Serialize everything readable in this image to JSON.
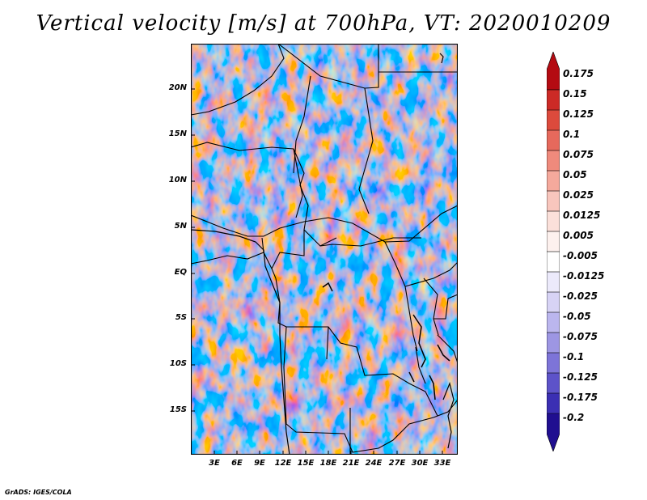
{
  "title": "Vertical velocity [m/s] at 700hPa, VT: 2020010209",
  "footer": "GrADS: IGES/COLA",
  "map": {
    "lat_labels": [
      "20N",
      "15N",
      "10N",
      "5N",
      "EQ",
      "5S",
      "10S",
      "15S"
    ],
    "lon_labels": [
      "3E",
      "6E",
      "9E",
      "12E",
      "15E",
      "18E",
      "21E",
      "24E",
      "27E",
      "30E",
      "33E"
    ]
  },
  "colorbar": {
    "labels": [
      "0.175",
      "0.15",
      "0.125",
      "0.1",
      "0.075",
      "0.05",
      "0.025",
      "0.0125",
      "0.005",
      "-0.005",
      "-0.0125",
      "-0.025",
      "-0.05",
      "-0.075",
      "-0.1",
      "-0.125",
      "-0.175",
      "-0.2"
    ],
    "colors": [
      "#b40b12",
      "#cc2a26",
      "#dc4a3c",
      "#e6695c",
      "#ef8a7c",
      "#f5a99c",
      "#f8c6bd",
      "#fbe0da",
      "#fdf1ee",
      "#ffffff",
      "#eceafb",
      "#d7d3f5",
      "#bbb6ee",
      "#9d96e3",
      "#7d74d8",
      "#5d53c9",
      "#3b2fb3",
      "#200f90"
    ]
  }
}
